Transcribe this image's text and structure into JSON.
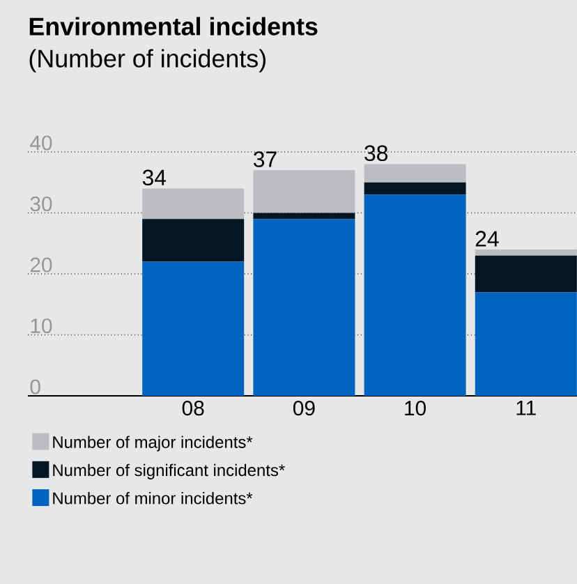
{
  "chart_data": {
    "type": "bar",
    "title": "Environmental incidents",
    "subtitle": "(Number of incidents)",
    "categories": [
      "08",
      "09",
      "10",
      "11"
    ],
    "stacked": true,
    "series": [
      {
        "name": "Number of minor incidents*",
        "color": "#0064bf",
        "values": [
          22,
          29,
          33,
          17
        ]
      },
      {
        "name": "Number of significant incidents*",
        "color": "#041624",
        "values": [
          7,
          1,
          2,
          6
        ]
      },
      {
        "name": "Number of major incidents*",
        "color": "#bcbdc0",
        "values": [
          5,
          7,
          3,
          1
        ]
      }
    ],
    "totals": [
      "34",
      "37",
      "38",
      "24"
    ],
    "ylim": [
      0,
      40
    ],
    "yticks": [
      0,
      10,
      20,
      30,
      40
    ],
    "grid": "y",
    "legend": "bottom"
  }
}
